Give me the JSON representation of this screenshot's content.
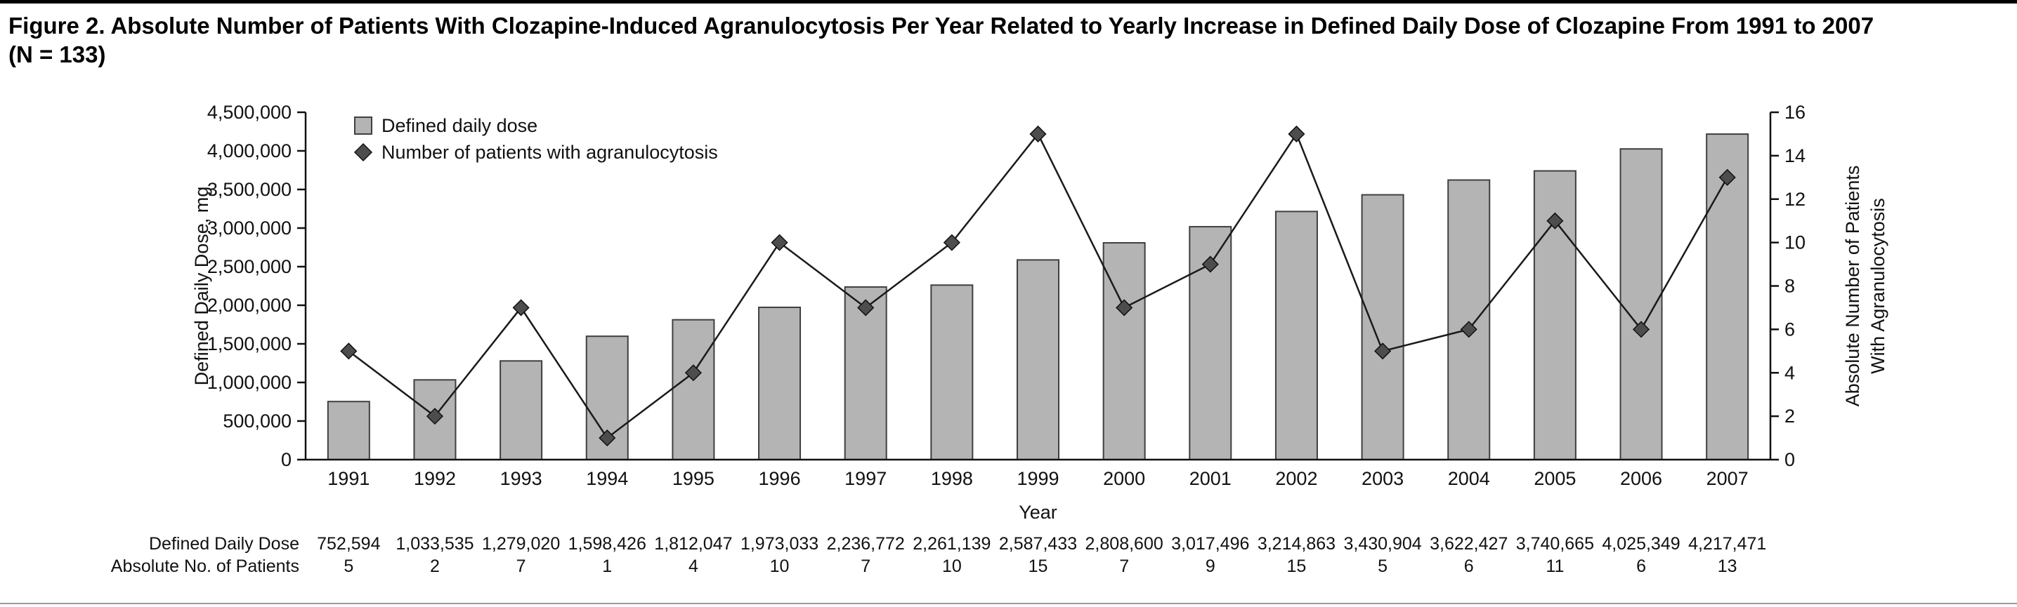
{
  "figure": {
    "title_line1": "Figure 2. Absolute Number of Patients With Clozapine-Induced Agranulocytosis Per Year Related to Yearly Increase in Defined Daily Dose of Clozapine From 1991 to 2007",
    "title_line2": "(N = 133)"
  },
  "chart_data": {
    "type": "bar+line",
    "categories": [
      "1991",
      "1992",
      "1993",
      "1994",
      "1995",
      "1996",
      "1997",
      "1998",
      "1999",
      "2000",
      "2001",
      "2002",
      "2003",
      "2004",
      "2005",
      "2006",
      "2007"
    ],
    "series": [
      {
        "name": "Defined daily dose",
        "type": "bar",
        "axis": "left",
        "values": [
          752594,
          1033535,
          1279020,
          1598426,
          1812047,
          1973033,
          2236772,
          2261139,
          2587433,
          2808600,
          3017496,
          3214863,
          3430904,
          3622427,
          3740665,
          4025349,
          4217471
        ]
      },
      {
        "name": "Number of patients with agranulocytosis",
        "type": "line",
        "axis": "right",
        "values": [
          5,
          2,
          7,
          1,
          4,
          10,
          7,
          10,
          15,
          7,
          9,
          15,
          5,
          6,
          11,
          6,
          13
        ]
      }
    ],
    "left_axis": {
      "label": "Defined Daily Dose, mg",
      "min": 0,
      "max": 4500000,
      "tick_step": 500000
    },
    "right_axis": {
      "label_line1": "Absolute Number of Patients",
      "label_line2": "With Agranulocytosis",
      "min": 0,
      "max": 16,
      "tick_step": 2
    },
    "xlabel": "Year",
    "legend_position": "top-left-inside",
    "grid": false,
    "colors": {
      "bar_fill": "#b4b4b4",
      "bar_stroke": "#3f3f3f",
      "line": "#1a1a1a",
      "marker_fill": "#4d4d4d",
      "marker_stroke": "#111111",
      "axis": "#111111"
    }
  },
  "table": {
    "rows": [
      {
        "label": "Defined Daily Dose",
        "values": [
          "752,594",
          "1,033,535",
          "1,279,020",
          "1,598,426",
          "1,812,047",
          "1,973,033",
          "2,236,772",
          "2,261,139",
          "2,587,433",
          "2,808,600",
          "3,017,496",
          "3,214,863",
          "3,430,904",
          "3,622,427",
          "3,740,665",
          "4,025,349",
          "4,217,471"
        ]
      },
      {
        "label": "Absolute No. of Patients",
        "values": [
          "5",
          "2",
          "7",
          "1",
          "4",
          "10",
          "7",
          "10",
          "15",
          "7",
          "9",
          "15",
          "5",
          "6",
          "11",
          "6",
          "13"
        ]
      }
    ]
  }
}
